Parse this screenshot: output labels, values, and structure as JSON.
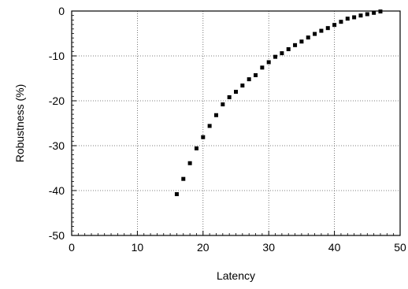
{
  "chart_data": {
    "type": "scatter",
    "title": "",
    "xlabel": "Latency",
    "ylabel": "Robustness (%)",
    "xlim": [
      0,
      50
    ],
    "ylim": [
      -50,
      0
    ],
    "x_ticks": [
      "0",
      "10",
      "20",
      "30",
      "40",
      "50"
    ],
    "y_ticks": [
      "0",
      "-10",
      "-20",
      "-30",
      "-40",
      "-50"
    ],
    "grid": true,
    "grid_style": "dotted",
    "legend": "none",
    "marker": "square",
    "marker_color": "#000000",
    "series": [
      {
        "x": [
          16,
          17,
          18,
          19,
          20,
          21,
          22,
          23,
          24,
          25,
          26,
          27,
          28,
          29,
          30,
          31,
          32,
          33,
          34,
          35,
          36,
          37,
          38,
          39,
          40,
          41,
          42,
          43,
          44,
          45,
          46,
          47
        ],
        "y": [
          -40.8,
          -37.4,
          -33.9,
          -30.6,
          -28.1,
          -25.6,
          -23.2,
          -20.8,
          -19.2,
          -18.0,
          -16.6,
          -15.2,
          -14.3,
          -12.6,
          -11.4,
          -10.2,
          -9.4,
          -8.5,
          -7.6,
          -6.8,
          -5.9,
          -5.1,
          -4.4,
          -3.8,
          -3.1,
          -2.4,
          -1.7,
          -1.4,
          -1.0,
          -0.7,
          -0.4,
          -0.1
        ]
      }
    ]
  }
}
